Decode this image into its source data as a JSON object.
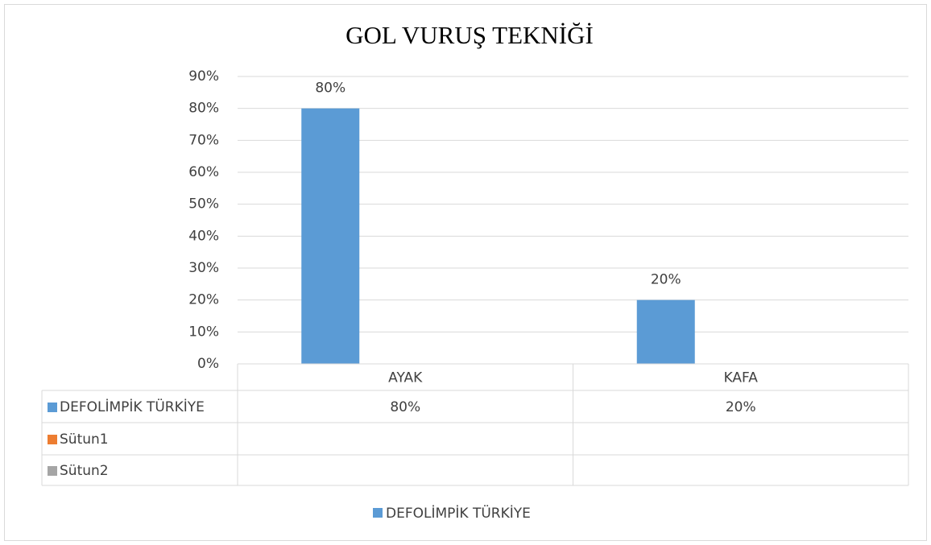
{
  "chart_data": {
    "type": "bar",
    "title": "GOL VURUŞ TEKNİĞİ",
    "categories": [
      "AYAK",
      "KAFA"
    ],
    "series": [
      {
        "name": "DEFOLİMPİK TÜRKİYE",
        "color": "#5b9bd5",
        "values": [
          80,
          20
        ],
        "value_labels": [
          "80%",
          "20%"
        ]
      },
      {
        "name": "Sütun1",
        "color": "#ed7d31",
        "values": [
          null,
          null
        ]
      },
      {
        "name": "Sütun2",
        "color": "#a5a5a5",
        "values": [
          null,
          null
        ]
      }
    ],
    "ylim": [
      0,
      90
    ],
    "yticks": [
      {
        "value": 0,
        "label": "0%"
      },
      {
        "value": 10,
        "label": "10%"
      },
      {
        "value": 20,
        "label": "20%"
      },
      {
        "value": 30,
        "label": "30%"
      },
      {
        "value": 40,
        "label": "40%"
      },
      {
        "value": 50,
        "label": "50%"
      },
      {
        "value": 60,
        "label": "60%"
      },
      {
        "value": 70,
        "label": "70%"
      },
      {
        "value": 80,
        "label": "80%"
      },
      {
        "value": 90,
        "label": "90%"
      }
    ],
    "grid": true,
    "legend": "bottom",
    "data_table": true
  }
}
